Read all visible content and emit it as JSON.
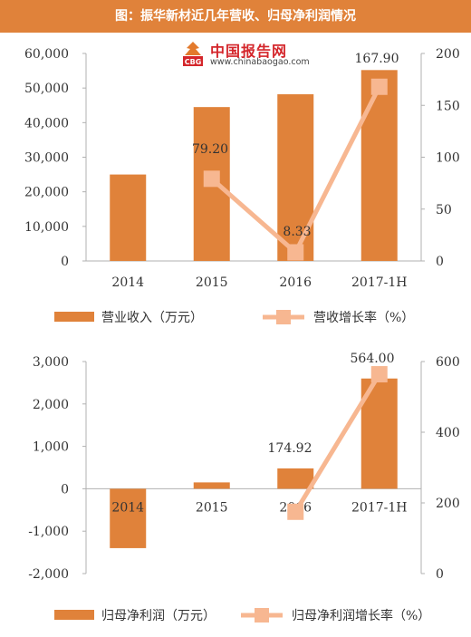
{
  "title": "图：振华新材近几年营收、归母净利润情况",
  "logo": {
    "name": "中国报告网",
    "url": "www.chinabaogao.com",
    "badge": "CBG"
  },
  "colors": {
    "bar": "#e0823a",
    "line": "#f7b791",
    "axis": "#b0b0b0",
    "text": "#333333"
  },
  "chart_data": [
    {
      "type": "bar+line",
      "categories": [
        "2014",
        "2015",
        "2016",
        "2017-1H"
      ],
      "series": [
        {
          "name": "营业收入（万元）",
          "type": "bar",
          "axis": "left",
          "values": [
            25000,
            44500,
            48200,
            55200
          ]
        },
        {
          "name": "营收增长率（%）",
          "type": "line",
          "axis": "right",
          "values": [
            null,
            79.2,
            8.33,
            167.9
          ]
        }
      ],
      "data_labels": [
        "79.20",
        "8.33",
        "167.90"
      ],
      "y_left": {
        "min": 0,
        "max": 60000,
        "ticks": [
          "0",
          "10,000",
          "20,000",
          "30,000",
          "40,000",
          "50,000",
          "60,000"
        ]
      },
      "y_right": {
        "min": 0,
        "max": 200,
        "ticks": [
          "0",
          "50",
          "100",
          "150",
          "200"
        ]
      },
      "legend": "bottom"
    },
    {
      "type": "bar+line",
      "categories": [
        "2014",
        "2015",
        "2016",
        "2017-1H"
      ],
      "series": [
        {
          "name": "归母净利润（万元）",
          "type": "bar",
          "axis": "left",
          "values": [
            -1400,
            150,
            480,
            2600
          ]
        },
        {
          "name": "归母净利润增长率（%）",
          "type": "line",
          "axis": "right",
          "values": [
            null,
            null,
            174.92,
            564.0
          ]
        }
      ],
      "data_labels": [
        "174.92",
        "564.00"
      ],
      "y_left": {
        "min": -2000,
        "max": 3000,
        "ticks": [
          "-2,000",
          "-1,000",
          "0",
          "1,000",
          "2,000",
          "3,000"
        ]
      },
      "y_right": {
        "min": 0,
        "max": 600,
        "ticks": [
          "0",
          "200",
          "400",
          "600"
        ]
      },
      "legend": "bottom"
    }
  ]
}
